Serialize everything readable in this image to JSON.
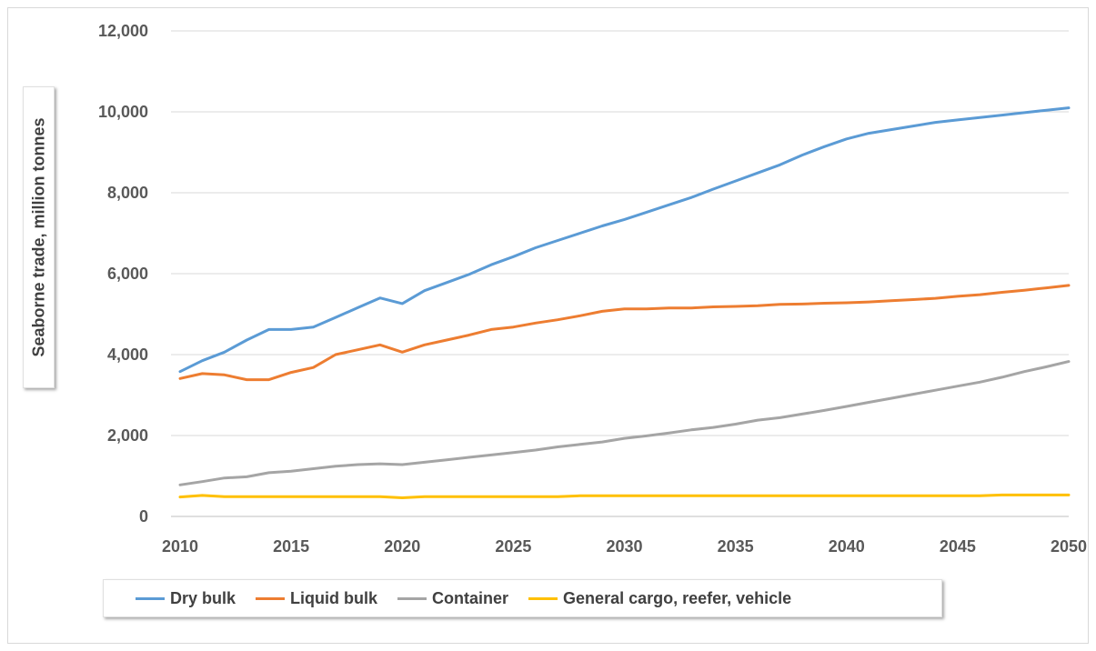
{
  "chart_data": {
    "type": "line",
    "title": "",
    "xlabel": "",
    "ylabel": "Seaborne trade, million tonnes",
    "xlim": [
      2010,
      2050
    ],
    "ylim": [
      0,
      12000
    ],
    "x_ticks": [
      "2010",
      "2015",
      "2020",
      "2025",
      "2030",
      "2035",
      "2040",
      "2045",
      "2050"
    ],
    "y_ticks": [
      "0",
      "2,000",
      "4,000",
      "6,000",
      "8,000",
      "10,000",
      "12,000"
    ],
    "grid": true,
    "legend_position": "bottom",
    "x": [
      2010,
      2011,
      2012,
      2013,
      2014,
      2015,
      2016,
      2017,
      2018,
      2019,
      2020,
      2021,
      2022,
      2023,
      2024,
      2025,
      2026,
      2027,
      2028,
      2029,
      2030,
      2031,
      2032,
      2033,
      2034,
      2035,
      2036,
      2037,
      2038,
      2039,
      2040,
      2041,
      2042,
      2043,
      2044,
      2045,
      2046,
      2047,
      2048,
      2049,
      2050
    ],
    "series": [
      {
        "name": "Dry bulk",
        "color": "#5b9bd5",
        "values": [
          3580,
          3850,
          4060,
          4360,
          4620,
          4620,
          4680,
          4920,
          5160,
          5400,
          5260,
          5580,
          5780,
          5980,
          6220,
          6420,
          6640,
          6820,
          7000,
          7180,
          7340,
          7520,
          7700,
          7880,
          8090,
          8290,
          8490,
          8690,
          8930,
          9140,
          9330,
          9470,
          9560,
          9650,
          9740,
          9800,
          9860,
          9920,
          9980,
          10040,
          10100
        ]
      },
      {
        "name": "Liquid bulk",
        "color": "#ed7d31",
        "values": [
          3410,
          3530,
          3500,
          3380,
          3380,
          3560,
          3680,
          4000,
          4120,
          4240,
          4060,
          4240,
          4360,
          4480,
          4620,
          4680,
          4780,
          4860,
          4960,
          5070,
          5130,
          5130,
          5150,
          5150,
          5180,
          5190,
          5210,
          5240,
          5250,
          5270,
          5280,
          5300,
          5330,
          5360,
          5390,
          5440,
          5480,
          5540,
          5590,
          5650,
          5710
        ]
      },
      {
        "name": "Container",
        "color": "#a5a5a5",
        "values": [
          780,
          860,
          950,
          980,
          1080,
          1120,
          1180,
          1240,
          1280,
          1300,
          1280,
          1340,
          1400,
          1460,
          1520,
          1580,
          1640,
          1720,
          1780,
          1840,
          1930,
          1990,
          2060,
          2140,
          2200,
          2280,
          2380,
          2440,
          2530,
          2620,
          2720,
          2820,
          2920,
          3020,
          3120,
          3220,
          3320,
          3440,
          3580,
          3700,
          3830
        ]
      },
      {
        "name": "General cargo, reefer, vehicle",
        "color": "#ffc000",
        "values": [
          480,
          520,
          490,
          490,
          490,
          490,
          490,
          490,
          490,
          490,
          460,
          490,
          490,
          490,
          490,
          490,
          490,
          490,
          510,
          510,
          510,
          510,
          510,
          510,
          510,
          510,
          510,
          510,
          510,
          510,
          510,
          510,
          510,
          510,
          510,
          510,
          510,
          530,
          530,
          530,
          530
        ]
      }
    ]
  }
}
